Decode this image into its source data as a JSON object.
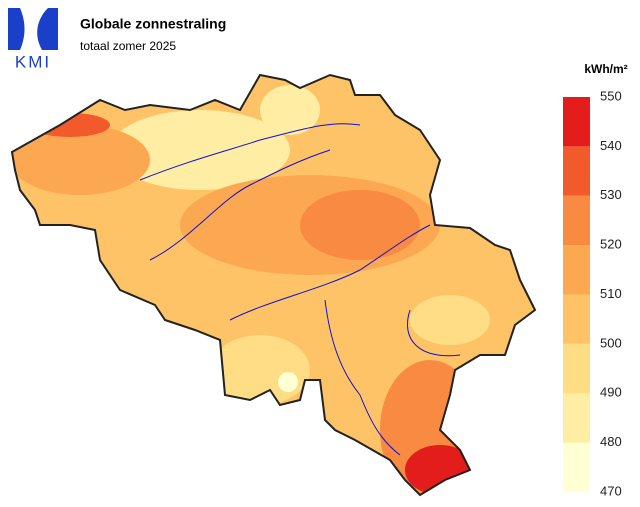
{
  "logo": {
    "text": "KMI"
  },
  "header": {
    "title": "Globale zonnestraling",
    "subtitle": "totaal zomer 2025"
  },
  "legend": {
    "unit": "kWh/m²",
    "ticks": [
      470,
      480,
      490,
      500,
      510,
      520,
      530,
      540,
      550
    ],
    "colors": [
      "#ffffd4",
      "#feeda2",
      "#fedd84",
      "#fdc366",
      "#fca852",
      "#f98a42",
      "#f25a2c",
      "#e31c1c"
    ]
  }
}
